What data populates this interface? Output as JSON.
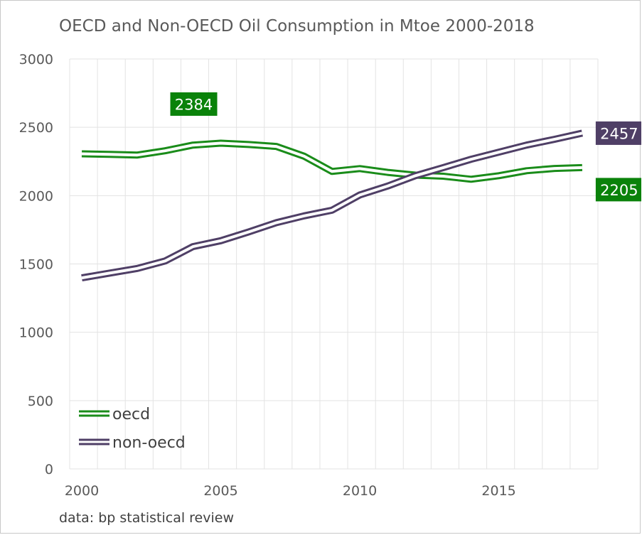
{
  "chart_data": {
    "type": "line",
    "title": "OECD and Non-OECD Oil Consumption in Mtoe 2000-2018",
    "source": "data: bp statistical review",
    "x": [
      2000,
      2001,
      2002,
      2003,
      2004,
      2005,
      2006,
      2007,
      2008,
      2009,
      2010,
      2011,
      2012,
      2013,
      2014,
      2015,
      2016,
      2017,
      2018
    ],
    "xticks": [
      2000,
      2005,
      2010,
      2015
    ],
    "yticks": [
      0,
      500,
      1000,
      1500,
      2000,
      2500,
      3000
    ],
    "xlim": [
      2000,
      2019
    ],
    "ylim": [
      0,
      3000
    ],
    "grid": true,
    "legend_position": "bottom-left",
    "series": [
      {
        "name": "oecd",
        "color": "#1a8c1a",
        "values": [
          2306,
          2302,
          2297,
          2328,
          2370,
          2384,
          2374,
          2360,
          2288,
          2177,
          2198,
          2170,
          2150,
          2142,
          2120,
          2146,
          2182,
          2199,
          2205
        ]
      },
      {
        "name": "non-oecd",
        "color": "#4f3f66",
        "values": [
          1398,
          1433,
          1467,
          1522,
          1627,
          1670,
          1734,
          1802,
          1852,
          1893,
          2005,
          2070,
          2146,
          2205,
          2266,
          2318,
          2370,
          2412,
          2457
        ]
      }
    ],
    "annotations": [
      {
        "label": "2384",
        "x": 2005,
        "y": 2384,
        "color": "#0a820a"
      },
      {
        "label": "2457",
        "x": 2018,
        "y": 2457,
        "color": "#4f3f66"
      },
      {
        "label": "2205",
        "x": 2018,
        "y": 2205,
        "color": "#0a820a"
      }
    ]
  }
}
